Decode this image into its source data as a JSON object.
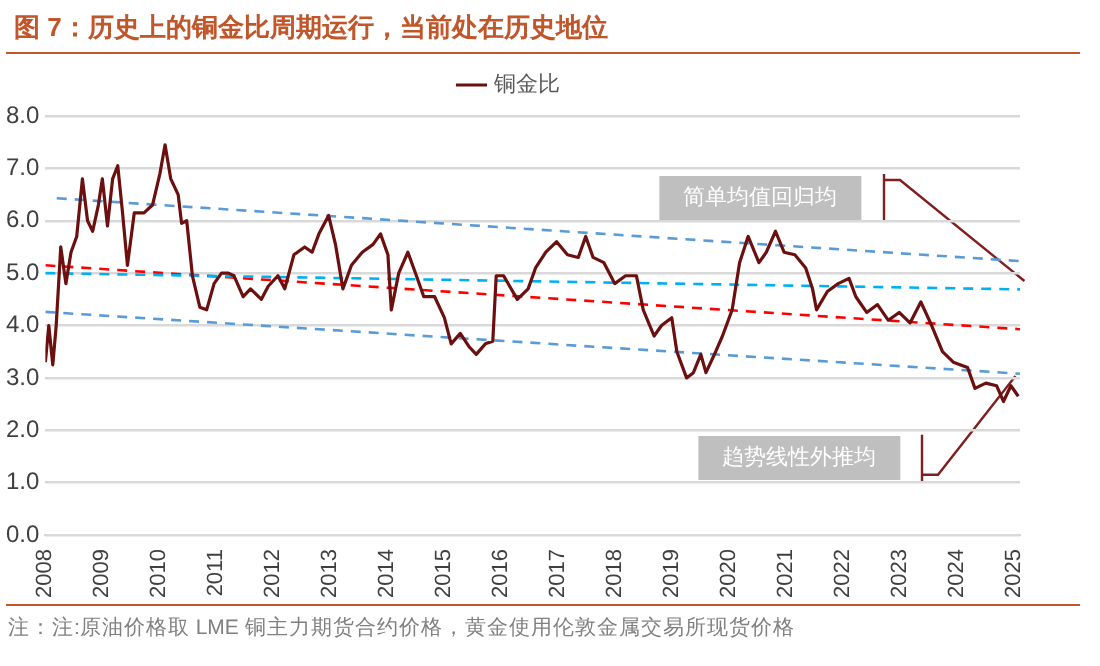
{
  "chart_data": {
    "type": "line",
    "title": "图 7：历史上的铜金比周期运行，当前处在历史地位",
    "legend": "top",
    "grid": "y",
    "marker": "none",
    "xlim": [
      2008,
      2025.1
    ],
    "xticks": [
      2008,
      2009,
      2010,
      2011,
      2012,
      2013,
      2014,
      2015,
      2016,
      2017,
      2018,
      2019,
      2020,
      2021,
      2022,
      2023,
      2024,
      2025
    ],
    "ylim": [
      0,
      8
    ],
    "yticks": [
      {
        "value": 0,
        "label": "0.0"
      },
      {
        "value": 1,
        "label": "1.0"
      },
      {
        "value": 2,
        "label": "2.0"
      },
      {
        "value": 3,
        "label": "3.0"
      },
      {
        "value": 4,
        "label": "4.0"
      },
      {
        "value": 5,
        "label": "5.0"
      },
      {
        "value": 6,
        "label": "6.0"
      },
      {
        "value": 7,
        "label": "7.0"
      },
      {
        "value": 8,
        "label": "8.0"
      }
    ],
    "series": [
      {
        "name": "铜金比",
        "color": "#6b0f0f",
        "line_style": "solid",
        "x": [
          2008.0,
          2008.06,
          2008.13,
          2008.19,
          2008.27,
          2008.36,
          2008.45,
          2008.55,
          2008.65,
          2008.74,
          2008.83,
          2008.93,
          2009.0,
          2009.09,
          2009.18,
          2009.27,
          2009.35,
          2009.44,
          2009.56,
          2009.73,
          2009.88,
          2010.01,
          2010.1,
          2010.2,
          2010.33,
          2010.39,
          2010.48,
          2010.58,
          2010.71,
          2010.83,
          2010.96,
          2011.09,
          2011.21,
          2011.31,
          2011.47,
          2011.6,
          2011.79,
          2011.91,
          2012.08,
          2012.2,
          2012.36,
          2012.55,
          2012.68,
          2012.8,
          2012.97,
          2013.09,
          2013.22,
          2013.37,
          2013.56,
          2013.75,
          2013.88,
          2014.01,
          2014.07,
          2014.2,
          2014.36,
          2014.51,
          2014.64,
          2014.83,
          2015.0,
          2015.12,
          2015.28,
          2015.43,
          2015.56,
          2015.72,
          2015.85,
          2015.91,
          2016.04,
          2016.28,
          2016.47,
          2016.6,
          2016.78,
          2016.97,
          2017.16,
          2017.35,
          2017.48,
          2017.61,
          2017.8,
          2017.99,
          2018.18,
          2018.37,
          2018.49,
          2018.68,
          2018.81,
          2018.99,
          2019.08,
          2019.25,
          2019.37,
          2019.5,
          2019.59,
          2019.76,
          2019.88,
          2020.05,
          2020.18,
          2020.33,
          2020.52,
          2020.65,
          2020.81,
          2020.96,
          2021.15,
          2021.34,
          2021.46,
          2021.53,
          2021.72,
          2021.91,
          2022.1,
          2022.22,
          2022.41,
          2022.6,
          2022.79,
          2022.98,
          2023.17,
          2023.36,
          2023.55,
          2023.74,
          2023.93,
          2024.18,
          2024.31,
          2024.5,
          2024.69,
          2024.81,
          2024.94,
          2025.07
        ],
        "values": [
          3.3,
          4.0,
          3.25,
          4.0,
          5.5,
          4.8,
          5.4,
          5.7,
          6.8,
          6.0,
          5.8,
          6.3,
          6.8,
          5.9,
          6.8,
          7.05,
          6.2,
          5.15,
          6.15,
          6.15,
          6.3,
          6.9,
          7.45,
          6.8,
          6.5,
          5.95,
          6.0,
          4.95,
          4.35,
          4.3,
          4.8,
          5.0,
          5.0,
          4.95,
          4.55,
          4.7,
          4.5,
          4.75,
          4.95,
          4.7,
          5.35,
          5.5,
          5.4,
          5.75,
          6.1,
          5.55,
          4.7,
          5.15,
          5.4,
          5.55,
          5.75,
          5.35,
          4.3,
          5.0,
          5.4,
          4.95,
          4.55,
          4.55,
          4.15,
          3.65,
          3.85,
          3.6,
          3.45,
          3.65,
          3.7,
          4.95,
          4.95,
          4.5,
          4.7,
          5.1,
          5.4,
          5.6,
          5.35,
          5.3,
          5.7,
          5.3,
          5.2,
          4.8,
          4.95,
          4.95,
          4.3,
          3.8,
          4.0,
          4.15,
          3.5,
          3.0,
          3.1,
          3.45,
          3.1,
          3.5,
          3.8,
          4.3,
          5.2,
          5.7,
          5.2,
          5.4,
          5.8,
          5.4,
          5.35,
          5.1,
          4.7,
          4.3,
          4.65,
          4.8,
          4.9,
          4.55,
          4.25,
          4.4,
          4.1,
          4.25,
          4.05,
          4.45,
          4.0,
          3.5,
          3.3,
          3.2,
          2.8,
          2.9,
          2.85,
          2.55,
          2.85,
          2.65
        ]
      },
      {
        "color": "#5b9bd5",
        "line_style": "dashed",
        "x": [
          2008.2,
          2025.1
        ],
        "values": [
          6.43,
          5.23
        ]
      },
      {
        "color": "#00b0f0",
        "line_style": "dashed",
        "x": [
          2008.0,
          2025.1
        ],
        "values": [
          5.0,
          4.69
        ]
      },
      {
        "color": "#ff0000",
        "line_style": "dashed",
        "x": [
          2008.0,
          2025.1
        ],
        "values": [
          5.15,
          3.93
        ]
      },
      {
        "color": "#5b9bd5",
        "line_style": "dashed",
        "x": [
          2008.0,
          2025.1
        ],
        "values": [
          4.26,
          3.08
        ]
      }
    ],
    "annotations": [
      "简单均值回归均",
      "趋势线性外推均",
      "注：注:原油价格取 LME 铜主力期货合约价格，黄金使用伦敦金属交易所现货价格"
    ]
  }
}
